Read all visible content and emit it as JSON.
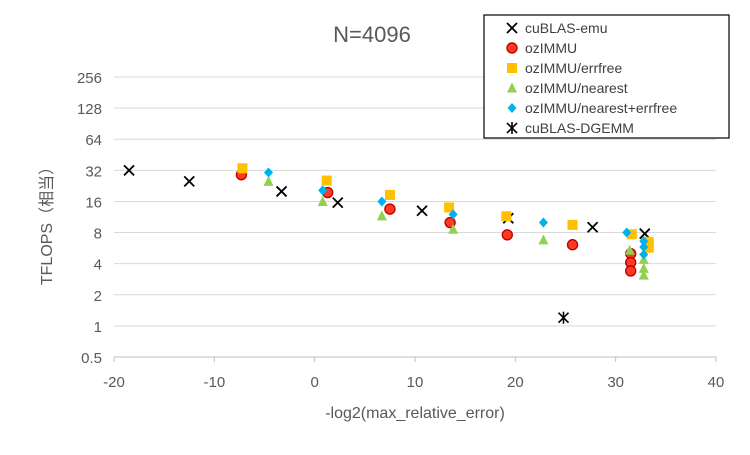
{
  "chart_data": {
    "type": "scatter",
    "title": "N=4096",
    "xlabel": "-log2(max_relative_error)",
    "ylabel": "TFLOPS（相当）",
    "xlim": [
      -20,
      40
    ],
    "ylim": [
      0.5,
      256
    ],
    "yscale": "log2",
    "x_ticks": [
      -20,
      -10,
      0,
      10,
      20,
      30,
      40
    ],
    "y_ticks": [
      0.5,
      1,
      2,
      4,
      8,
      16,
      32,
      64,
      128,
      256
    ],
    "y_tick_labels": [
      "0.5",
      "1",
      "2",
      "4",
      "8",
      "16",
      "32",
      "64",
      "128",
      "256"
    ],
    "grid": "horizontal",
    "legend_position": "top-right",
    "series": [
      {
        "name": "cuBLAS-emu",
        "marker": "x",
        "color": "#000000",
        "points": [
          [
            -18.5,
            32
          ],
          [
            -12.5,
            25
          ],
          [
            -3.3,
            20
          ],
          [
            2.3,
            15.6
          ],
          [
            10.7,
            13
          ],
          [
            19.3,
            11
          ],
          [
            27.7,
            9
          ],
          [
            32.9,
            7.8
          ]
        ]
      },
      {
        "name": "ozIMMU",
        "marker": "circle",
        "color": "#ff3b1f",
        "stroke": "#c00000",
        "points": [
          [
            -7.3,
            29
          ],
          [
            1.3,
            19.5
          ],
          [
            7.5,
            13.5
          ],
          [
            13.5,
            10
          ],
          [
            19.2,
            7.6
          ],
          [
            25.7,
            6.1
          ],
          [
            31.5,
            5
          ],
          [
            31.5,
            4.1
          ],
          [
            31.5,
            3.4
          ]
        ]
      },
      {
        "name": "ozIMMU/errfree",
        "marker": "square",
        "color": "#ffc000",
        "points": [
          [
            -7.2,
            33.5
          ],
          [
            1.2,
            25.5
          ],
          [
            7.5,
            18.5
          ],
          [
            13.4,
            14
          ],
          [
            19.1,
            11.5
          ],
          [
            25.7,
            9.5
          ],
          [
            31.6,
            7.7
          ],
          [
            33.3,
            6.5
          ],
          [
            33.3,
            5.7
          ]
        ]
      },
      {
        "name": "ozIMMU/nearest",
        "marker": "triangle",
        "color": "#92d050",
        "points": [
          [
            -4.6,
            25
          ],
          [
            0.8,
            16
          ],
          [
            6.7,
            11.6
          ],
          [
            13.8,
            8.6
          ],
          [
            22.8,
            6.8
          ],
          [
            31.4,
            5.4
          ],
          [
            32.8,
            4.4
          ],
          [
            32.8,
            3.6
          ],
          [
            32.8,
            3.1
          ]
        ]
      },
      {
        "name": "ozIMMU/nearest+errfree",
        "marker": "diamond",
        "color": "#00b0f0",
        "points": [
          [
            -4.6,
            30.5
          ],
          [
            0.8,
            20.5
          ],
          [
            6.7,
            16
          ],
          [
            13.8,
            12
          ],
          [
            22.8,
            10
          ],
          [
            31.1,
            8
          ],
          [
            32.8,
            6.6
          ],
          [
            32.8,
            5.8
          ],
          [
            32.8,
            4.9
          ]
        ]
      },
      {
        "name": "cuBLAS-DGEMM",
        "marker": "asterisk",
        "color": "#000000",
        "points": [
          [
            24.8,
            1.2
          ]
        ]
      }
    ]
  }
}
